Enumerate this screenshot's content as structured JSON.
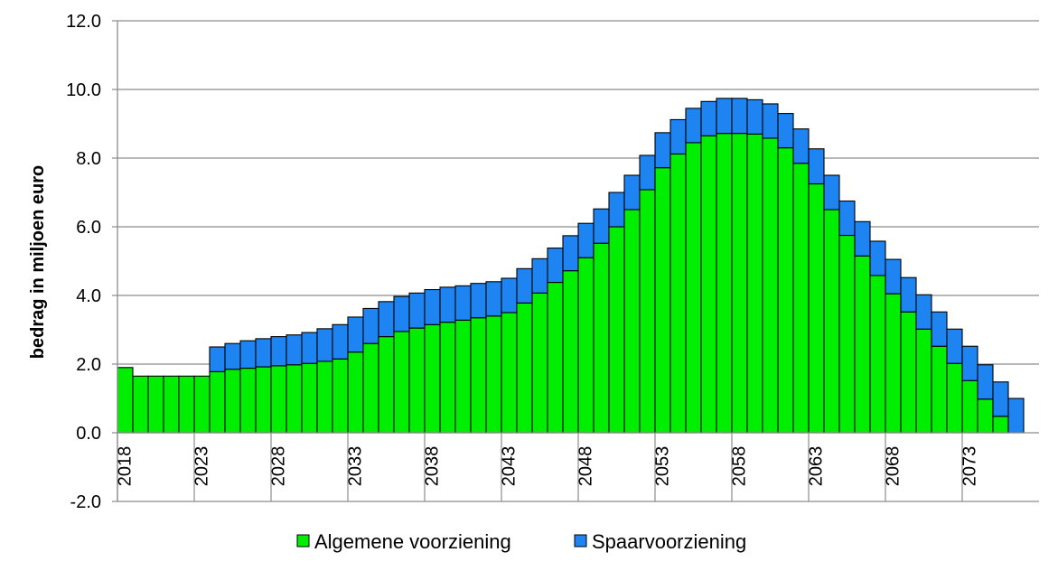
{
  "chart_data": {
    "type": "bar",
    "stacked": true,
    "title": "",
    "xlabel": "",
    "ylabel": "bedrag in miljoen euro",
    "ylim": [
      -2.0,
      12.0
    ],
    "yticks": [
      "12.0",
      "10.0",
      "8.0",
      "6.0",
      "4.0",
      "2.0",
      "0.0",
      "-2.0"
    ],
    "grid": true,
    "legend_position": "bottom",
    "x": [
      2018,
      2019,
      2020,
      2021,
      2022,
      2023,
      2024,
      2025,
      2026,
      2027,
      2028,
      2029,
      2030,
      2031,
      2032,
      2033,
      2034,
      2035,
      2036,
      2037,
      2038,
      2039,
      2040,
      2041,
      2042,
      2043,
      2044,
      2045,
      2046,
      2047,
      2048,
      2049,
      2050,
      2051,
      2052,
      2053,
      2054,
      2055,
      2056,
      2057,
      2058,
      2059,
      2060,
      2061,
      2062,
      2063,
      2064,
      2065,
      2066,
      2067,
      2068,
      2069,
      2070,
      2071,
      2072,
      2073,
      2074,
      2075,
      2076
    ],
    "xtick_labels": [
      "2018",
      "2023",
      "2028",
      "2033",
      "2038",
      "2043",
      "2048",
      "2053",
      "2058",
      "2063",
      "2068",
      "2073"
    ],
    "series": [
      {
        "name": "Algemene voorziening",
        "color": "#00ee00",
        "values": [
          1.9,
          1.65,
          1.65,
          1.65,
          1.65,
          1.65,
          1.78,
          1.85,
          1.88,
          1.92,
          1.95,
          1.98,
          2.02,
          2.08,
          2.15,
          2.35,
          2.6,
          2.8,
          2.95,
          3.05,
          3.15,
          3.22,
          3.28,
          3.35,
          3.4,
          3.5,
          3.78,
          4.07,
          4.38,
          4.72,
          5.1,
          5.52,
          6.0,
          6.5,
          7.08,
          7.72,
          8.12,
          8.45,
          8.65,
          8.72,
          8.72,
          8.7,
          8.58,
          8.3,
          7.85,
          7.25,
          6.5,
          5.75,
          5.15,
          4.58,
          4.05,
          3.52,
          3.02,
          2.52,
          2.02,
          1.52,
          0.98,
          0.48,
          0.0
        ]
      },
      {
        "name": "Spaarvoorziening",
        "color": "#1e84f2",
        "values": [
          0.0,
          0.0,
          0.0,
          0.0,
          0.0,
          0.0,
          0.72,
          0.75,
          0.8,
          0.82,
          0.85,
          0.87,
          0.9,
          0.95,
          1.0,
          1.02,
          1.02,
          1.02,
          1.02,
          1.02,
          1.02,
          1.02,
          1.0,
          1.0,
          1.0,
          1.0,
          1.0,
          1.0,
          1.0,
          1.02,
          1.0,
          1.0,
          1.0,
          1.0,
          1.0,
          1.02,
          1.0,
          1.0,
          1.0,
          1.02,
          1.02,
          1.0,
          1.0,
          1.0,
          1.0,
          1.02,
          1.0,
          1.0,
          1.0,
          1.0,
          1.0,
          1.0,
          1.0,
          1.0,
          1.0,
          1.0,
          1.0,
          1.0,
          1.0
        ]
      }
    ]
  }
}
